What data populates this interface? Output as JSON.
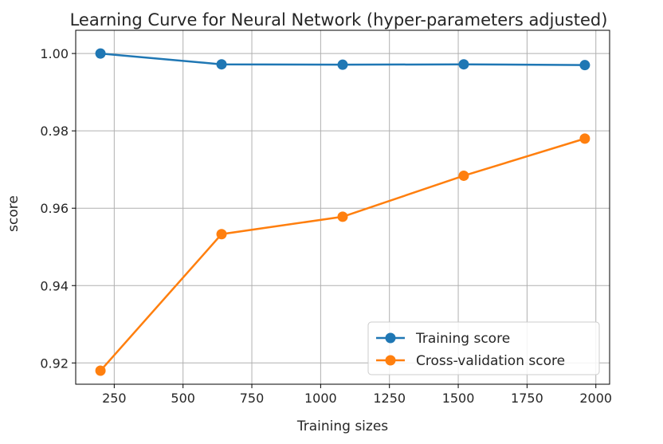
{
  "chart_data": {
    "type": "line",
    "title": "Learning Curve for Neural Network (hyper-parameters adjusted)",
    "xlabel": "Training sizes",
    "ylabel": "score",
    "x": [
      200,
      640,
      1080,
      1520,
      1960
    ],
    "series": [
      {
        "name": "Training score",
        "color": "#1f77b4",
        "values": [
          1.0,
          0.9972,
          0.9971,
          0.9972,
          0.997
        ]
      },
      {
        "name": "Cross-validation score",
        "color": "#ff7f0e",
        "values": [
          0.918,
          0.9533,
          0.9578,
          0.9684,
          0.978
        ]
      }
    ],
    "xlim": [
      110,
      2050
    ],
    "ylim": [
      0.9145,
      1.006
    ],
    "xticks": [
      {
        "value": 250,
        "label": "250"
      },
      {
        "value": 500,
        "label": "500"
      },
      {
        "value": 750,
        "label": "750"
      },
      {
        "value": 1000,
        "label": "1000"
      },
      {
        "value": 1250,
        "label": "1250"
      },
      {
        "value": 1500,
        "label": "1500"
      },
      {
        "value": 1750,
        "label": "1750"
      },
      {
        "value": 2000,
        "label": "2000"
      }
    ],
    "yticks": [
      {
        "value": 0.92,
        "label": "0.92"
      },
      {
        "value": 0.94,
        "label": "0.94"
      },
      {
        "value": 0.96,
        "label": "0.96"
      },
      {
        "value": 0.98,
        "label": "0.98"
      },
      {
        "value": 1.0,
        "label": "1.00"
      }
    ],
    "grid": true,
    "legend_position": "bottom-right"
  }
}
